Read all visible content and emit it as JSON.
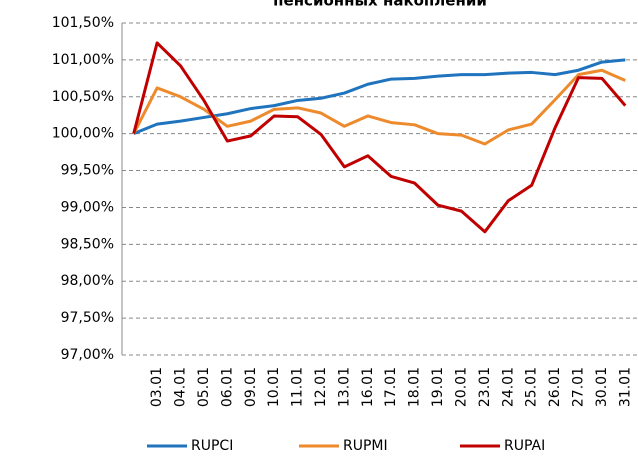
{
  "chart_data": {
    "type": "line",
    "title": "пенсионных накоплений",
    "categories": [
      null,
      "03.01",
      "04.01",
      "05.01",
      "06.01",
      "09.01",
      "10.01",
      "11.01",
      "12.01",
      "13.01",
      "16.01",
      "17.01",
      "18.01",
      "19.01",
      "20.01",
      "23.01",
      "24.01",
      "25.01",
      "26.01",
      "27.01",
      "30.01",
      "31.01"
    ],
    "series": [
      {
        "name": "RUPCI",
        "color": "#1f74bd",
        "values": [
          100,
          100.13,
          100.17,
          100.22,
          100.27,
          100.34,
          100.38,
          100.45,
          100.48,
          100.55,
          100.67,
          100.74,
          100.75,
          100.78,
          100.8,
          100.8,
          100.82,
          100.83,
          100.8,
          100.86,
          100.97,
          101.0
        ]
      },
      {
        "name": "RUPMI",
        "color": "#ed8a2c",
        "values": [
          100,
          100.62,
          100.5,
          100.33,
          100.1,
          100.17,
          100.33,
          100.35,
          100.28,
          100.1,
          100.24,
          100.15,
          100.12,
          100.0,
          99.98,
          99.86,
          100.05,
          100.13,
          100.46,
          100.8,
          100.86,
          100.72
        ]
      },
      {
        "name": "RUPAI",
        "color": "#c00000",
        "values": [
          100,
          101.23,
          100.92,
          100.45,
          99.9,
          99.97,
          100.24,
          100.23,
          99.99,
          99.55,
          99.7,
          99.42,
          99.33,
          99.03,
          98.95,
          98.67,
          99.09,
          99.3,
          100.08,
          100.76,
          100.75,
          100.38
        ]
      }
    ],
    "ylim": [
      97,
      101.5
    ],
    "yticks": [
      {
        "value": 97,
        "label": "97,00%"
      },
      {
        "value": 97.5,
        "label": "97,50%"
      },
      {
        "value": 98,
        "label": "98,00%"
      },
      {
        "value": 98.5,
        "label": "98,50%"
      },
      {
        "value": 99,
        "label": "99,00%"
      },
      {
        "value": 99.5,
        "label": "99,50%"
      },
      {
        "value": 100,
        "label": "100,00%"
      },
      {
        "value": 100.5,
        "label": "100,50%"
      },
      {
        "value": 101,
        "label": "101,00%"
      },
      {
        "value": 101.5,
        "label": "101,50%"
      }
    ],
    "grid": true,
    "legend": "bottom"
  }
}
